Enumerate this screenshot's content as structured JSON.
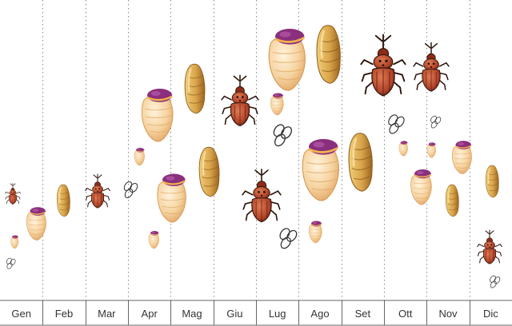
{
  "months": [
    "Gen",
    "Feb",
    "Mar",
    "Apr",
    "Mag",
    "Giu",
    "Lug",
    "Ago",
    "Set",
    "Ott",
    "Nov",
    "Dic"
  ],
  "colors": {
    "larva_body": "#f6d3a0",
    "larva_shade": "#e3a866",
    "larva_head": "#8a2f7d",
    "pupa_body": "#d9a44a",
    "pupa_shade": "#a66f22",
    "adult_body": "#b3452a",
    "adult_dark": "#3a1a10",
    "egg_stroke": "#333333",
    "grid": "#888888",
    "axis": "#666666",
    "label": "#333333"
  },
  "stage_icons": {
    "egg": "egg-cluster-icon",
    "larva": "larva-icon",
    "pupa": "pupa-icon",
    "adult": "weevil-adult-icon"
  }
}
